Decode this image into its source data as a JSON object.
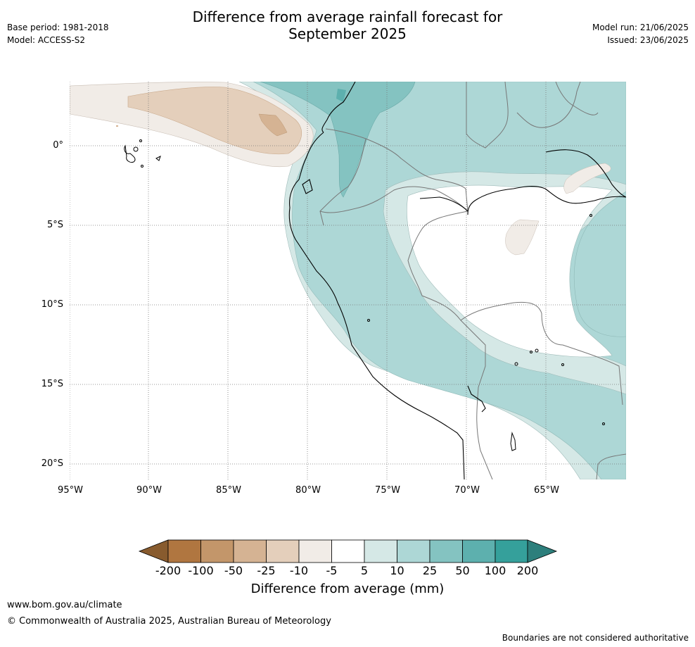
{
  "header": {
    "title_line1": "Difference from average rainfall forecast for",
    "title_line2": "September 2025",
    "base_period": "Base period: 1981-2018",
    "model": "Model: ACCESS-S2",
    "model_run": "Model run: 21/06/2025",
    "issued": "Issued: 23/06/2025"
  },
  "map": {
    "lat_labels": [
      "0°",
      "5°S",
      "10°S",
      "15°S",
      "20°S"
    ],
    "lon_labels": [
      "95°W",
      "90°W",
      "85°W",
      "80°W",
      "75°W",
      "70°W",
      "65°W"
    ]
  },
  "legend": {
    "label": "Difference from average (mm)",
    "ticks": [
      "-200",
      "-100",
      "-50",
      "-25",
      "-10",
      "-5",
      "5",
      "10",
      "25",
      "50",
      "100",
      "200"
    ],
    "colors": [
      "#885b2e",
      "#b07640",
      "#c3966a",
      "#d5b393",
      "#e4cfbb",
      "#f1ece7",
      "#ffffff",
      "#d5e8e6",
      "#add7d6",
      "#84c3c1",
      "#5db0ae",
      "#35a09b",
      "#2d7f7c"
    ]
  },
  "footer": {
    "url": "www.bom.gov.au/climate",
    "copyright": "© Commonwealth of Australia 2025, Australian Bureau of Meteorology",
    "disclaimer": "Boundaries are not considered authoritative"
  }
}
